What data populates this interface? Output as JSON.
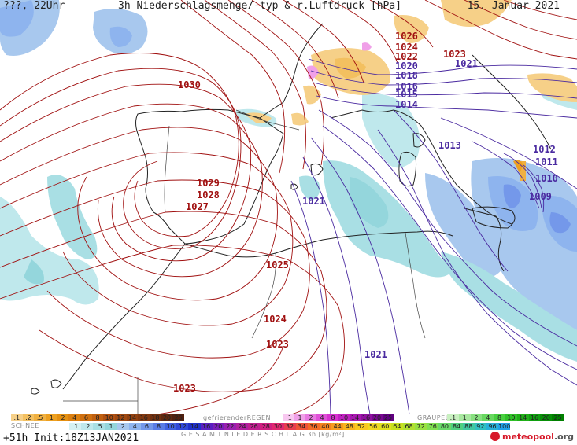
{
  "header": {
    "left": "???, 22Uhr",
    "title": "3h Niederschlagsmenge/-typ & r.Luftdruck [hPa]",
    "date": "15. Januar 2021"
  },
  "pressure_labels": [
    {
      "text": "1026",
      "color": "#a01010"
    },
    {
      "text": "1024",
      "color": "#a01010"
    },
    {
      "text": "1022",
      "color": "#a01010"
    },
    {
      "text": "1023",
      "color": "#a01010"
    },
    {
      "text": "1021",
      "color": "#4a2aa0"
    },
    {
      "text": "1020",
      "color": "#4a2aa0"
    },
    {
      "text": "1018",
      "color": "#4a2aa0"
    },
    {
      "text": "1016",
      "color": "#4a2aa0"
    },
    {
      "text": "1015",
      "color": "#4a2aa0"
    },
    {
      "text": "1014",
      "color": "#4a2aa0"
    },
    {
      "text": "1030",
      "color": "#a01010"
    },
    {
      "text": "1013",
      "color": "#4a2aa0"
    },
    {
      "text": "1012",
      "color": "#4a2aa0"
    },
    {
      "text": "1011",
      "color": "#4a2aa0"
    },
    {
      "text": "1010",
      "color": "#4a2aa0"
    },
    {
      "text": "1009",
      "color": "#4a2aa0"
    },
    {
      "text": "1029",
      "color": "#a01010"
    },
    {
      "text": "1028",
      "color": "#a01010"
    },
    {
      "text": "1027",
      "color": "#a01010"
    },
    {
      "text": "1021",
      "color": "#4a2aa0"
    },
    {
      "text": "1025",
      "color": "#a01010"
    },
    {
      "text": "1024",
      "color": "#a01010"
    },
    {
      "text": "1023",
      "color": "#a01010"
    },
    {
      "text": "1021",
      "color": "#4a2aa0"
    },
    {
      "text": "1023",
      "color": "#a01010"
    }
  ],
  "legend": {
    "snow_title": "SCHNEE",
    "rain_title": "gefrierenderREGEN",
    "graupel_title": "GRAUPEL",
    "total_title": "G E S A M T N I E D E R S C H L A G   3h  [kg/m²]",
    "snow": [
      {
        "label": ".1",
        "color": "#f6d088"
      },
      {
        "label": ".2",
        "color": "#f3c060"
      },
      {
        "label": ".5",
        "color": "#f0b040"
      },
      {
        "label": "1",
        "color": "#eda020"
      },
      {
        "label": "2",
        "color": "#e59010"
      },
      {
        "label": "4",
        "color": "#dc8010"
      },
      {
        "label": "6",
        "color": "#cf7010"
      },
      {
        "label": "8",
        "color": "#c06010"
      },
      {
        "label": "10",
        "color": "#b05010"
      },
      {
        "label": "12",
        "color": "#a04810"
      },
      {
        "label": "14",
        "color": "#904010"
      },
      {
        "label": "16",
        "color": "#803810"
      },
      {
        "label": "18",
        "color": "#703010"
      },
      {
        "label": "20",
        "color": "#602810"
      },
      {
        "label": "25",
        "color": "#502010"
      }
    ],
    "rain": [
      {
        "label": ".1",
        "color": "#f8c8f0"
      },
      {
        "label": "1",
        "color": "#f0a0e8"
      },
      {
        "label": "2",
        "color": "#e878e0"
      },
      {
        "label": "4",
        "color": "#e050d8"
      },
      {
        "label": "8",
        "color": "#d830d0"
      },
      {
        "label": "10",
        "color": "#c020c0"
      },
      {
        "label": "14",
        "color": "#a818b0"
      },
      {
        "label": "16",
        "color": "#9010a0"
      },
      {
        "label": "20",
        "color": "#780890"
      },
      {
        "label": "25",
        "color": "#600080"
      }
    ],
    "graupel": [
      {
        "label": ".1",
        "color": "#c8f0c0"
      },
      {
        "label": "1",
        "color": "#a8e8a0"
      },
      {
        "label": "2",
        "color": "#88e080"
      },
      {
        "label": "4",
        "color": "#68d860"
      },
      {
        "label": "8",
        "color": "#48d040"
      },
      {
        "label": "10",
        "color": "#30c028"
      },
      {
        "label": "14",
        "color": "#20b018"
      },
      {
        "label": "16",
        "color": "#10a010"
      },
      {
        "label": "20",
        "color": "#089008"
      },
      {
        "label": "25",
        "color": "#008000"
      }
    ],
    "total": [
      {
        "label": ".1",
        "color": "#d4f1f4"
      },
      {
        "label": ".2",
        "color": "#bfe8ec"
      },
      {
        "label": ".5",
        "color": "#a9dfe4"
      },
      {
        "label": "1",
        "color": "#94d6dc"
      },
      {
        "label": "2",
        "color": "#a8c8ee"
      },
      {
        "label": "4",
        "color": "#8eb4ee"
      },
      {
        "label": "6",
        "color": "#7498ea"
      },
      {
        "label": "8",
        "color": "#5a7ce6"
      },
      {
        "label": "10",
        "color": "#4060e0"
      },
      {
        "label": "12",
        "color": "#3048d8"
      },
      {
        "label": "14",
        "color": "#2030c8"
      },
      {
        "label": "16",
        "color": "#5a20c0"
      },
      {
        "label": "20",
        "color": "#7a20b8"
      },
      {
        "label": "22",
        "color": "#9a20b0"
      },
      {
        "label": "24",
        "color": "#b020a0"
      },
      {
        "label": "26",
        "color": "#c02090"
      },
      {
        "label": "28",
        "color": "#d02080"
      },
      {
        "label": "30",
        "color": "#e02870"
      },
      {
        "label": "32",
        "color": "#e83c50"
      },
      {
        "label": "34",
        "color": "#ee5438"
      },
      {
        "label": "36",
        "color": "#f26c28"
      },
      {
        "label": "40",
        "color": "#f48420"
      },
      {
        "label": "44",
        "color": "#f69c20"
      },
      {
        "label": "48",
        "color": "#f8b420"
      },
      {
        "label": "52",
        "color": "#f8c820"
      },
      {
        "label": "56",
        "color": "#f0d820"
      },
      {
        "label": "60",
        "color": "#e0e020"
      },
      {
        "label": "64",
        "color": "#c8e020"
      },
      {
        "label": "68",
        "color": "#b0e030"
      },
      {
        "label": "72",
        "color": "#98e040"
      },
      {
        "label": "76",
        "color": "#80e050"
      },
      {
        "label": "80",
        "color": "#68d868"
      },
      {
        "label": "84",
        "color": "#50d080"
      },
      {
        "label": "88",
        "color": "#40c8a0"
      },
      {
        "label": "92",
        "color": "#30c0c0"
      },
      {
        "label": "96",
        "color": "#28b0d8"
      },
      {
        "label": "100",
        "color": "#20a0e8"
      }
    ]
  },
  "footer": {
    "run": "+51h Init:18Z13JAN2021",
    "brand_main": "meteopool",
    "brand_tld": ".org"
  }
}
